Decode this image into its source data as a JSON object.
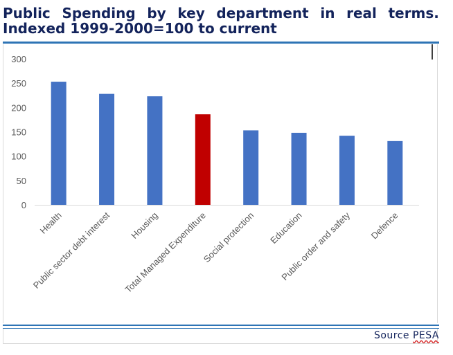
{
  "header": {
    "title_line1_words": [
      "Public",
      "Spending",
      "by",
      "key",
      "department",
      "in",
      "real",
      "terms."
    ],
    "title_line2": "Indexed 1999-2000=100 to current"
  },
  "footer": {
    "source_label": "Source",
    "source_name": "PESA"
  },
  "colors": {
    "bar": "#4472c4",
    "highlight_bar": "#c00000",
    "title": "#13235b",
    "rule": "#2e74b5"
  },
  "chart_data": {
    "type": "bar",
    "categories": [
      "Health",
      "Public sector debt interest",
      "Housing",
      "Total Managed Expenditure",
      "Social protection",
      "Education",
      "Public order and safety",
      "Defence"
    ],
    "values": [
      253,
      228,
      223,
      186,
      153,
      148,
      142,
      131
    ],
    "highlight_category": "Total Managed Expenditure",
    "ylim": [
      0,
      300
    ],
    "yticks": [
      0,
      50,
      100,
      150,
      200,
      250,
      300
    ],
    "grid": false,
    "legend": "none"
  }
}
